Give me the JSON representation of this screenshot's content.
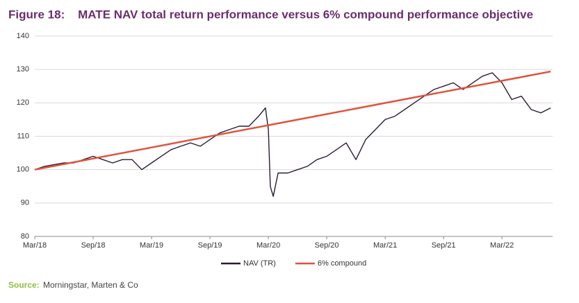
{
  "chart_data": {
    "type": "line",
    "title": "Figure 18:    MATE NAV total return performance versus 6% compound performance objective",
    "source_label": "Source:",
    "source": "Morningstar, Marten & Co",
    "series": [
      {
        "name": "NAV (TR)",
        "color": "#2a1b33",
        "x": [
          0,
          1,
          2,
          3,
          4,
          5,
          6,
          7,
          8,
          9,
          10,
          11,
          12,
          13,
          14,
          15,
          16,
          17,
          18,
          19,
          20,
          21,
          22,
          23,
          23.7,
          24,
          24.2,
          24.5,
          25,
          26,
          27,
          28,
          29,
          30,
          31,
          32,
          33,
          34,
          35,
          36,
          37,
          38,
          39,
          40,
          41,
          42,
          43,
          44,
          45,
          46,
          47,
          48,
          49,
          50,
          51,
          52,
          53
        ],
        "values": [
          100,
          101,
          101.5,
          102,
          102,
          103,
          104,
          103,
          102,
          103,
          103,
          100,
          102,
          104,
          106,
          107,
          108,
          107,
          109,
          111,
          112,
          113,
          113,
          116,
          118.5,
          112,
          95,
          92,
          99,
          99,
          100,
          101,
          103,
          104,
          106,
          108,
          103,
          109,
          112,
          115,
          116,
          118,
          120,
          122,
          124,
          125,
          126,
          124,
          126,
          128,
          129,
          126,
          121,
          122,
          118,
          117,
          118.5
        ]
      },
      {
        "name": "6% compound",
        "color": "#e0533c",
        "x": [
          0,
          53
        ],
        "values": [
          100,
          129.4
        ]
      }
    ],
    "xlim": [
      0,
      53.2
    ],
    "xticks": [
      {
        "value": 0,
        "label": "Mar/18"
      },
      {
        "value": 6,
        "label": "Sep/18"
      },
      {
        "value": 12,
        "label": "Mar/19"
      },
      {
        "value": 18,
        "label": "Sep/19"
      },
      {
        "value": 24,
        "label": "Mar/20"
      },
      {
        "value": 30,
        "label": "Sep/20"
      },
      {
        "value": 36,
        "label": "Mar/21"
      },
      {
        "value": 42,
        "label": "Sep/21"
      },
      {
        "value": 48,
        "label": "Mar/22"
      }
    ],
    "ylim": [
      80,
      140
    ],
    "yticks": [
      80,
      90,
      100,
      110,
      120,
      130,
      140
    ],
    "grid": true
  }
}
